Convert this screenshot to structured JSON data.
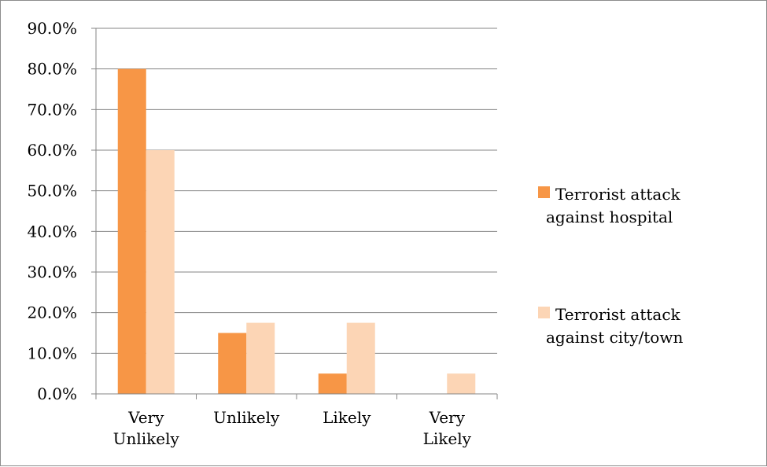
{
  "chart_data": {
    "type": "bar",
    "categories": [
      [
        "Very",
        "Unlikely"
      ],
      [
        "Unlikely"
      ],
      [
        "Likely"
      ],
      [
        "Very",
        "Likely"
      ]
    ],
    "series": [
      {
        "name": "Terrorist attack against hospital",
        "legend_lines": [
          "Terrorist attack",
          "against hospital"
        ],
        "color": "#f79646",
        "values": [
          80.0,
          15.0,
          5.0,
          0.0
        ]
      },
      {
        "name": "Terrorist attack against city/town",
        "legend_lines": [
          "Terrorist attack",
          "against city/town"
        ],
        "color": "#fcd5b5",
        "values": [
          60.0,
          17.5,
          17.5,
          5.0
        ]
      }
    ],
    "y_ticks": [
      "0.0%",
      "10.0%",
      "20.0%",
      "30.0%",
      "40.0%",
      "50.0%",
      "60.0%",
      "70.0%",
      "80.0%",
      "90.0%"
    ],
    "ylim": [
      0,
      90
    ],
    "grid": true,
    "legend_position": "right",
    "title": "",
    "xlabel": "",
    "ylabel": ""
  }
}
